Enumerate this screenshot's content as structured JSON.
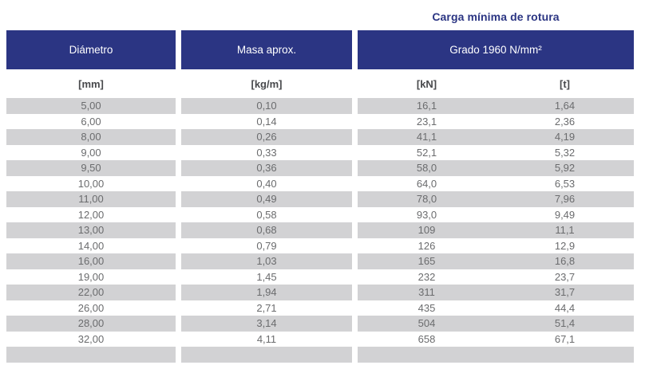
{
  "title": "Carga mínima de rotura",
  "colors": {
    "header_blue": "#2B3583",
    "title_blue": "#2B3583",
    "row_gray": "#D2D2D4",
    "data_text": "#6B6C6E",
    "unit_text": "#48494C"
  },
  "table": {
    "column_groups": [
      {
        "label": "Diámetro"
      },
      {
        "label": "Masa aprox."
      },
      {
        "label": "Grado 1960 N/mm²"
      }
    ],
    "units": {
      "diameter": "[mm]",
      "mass": "[kg/m]",
      "kn": "[kN]",
      "t": "[t]"
    },
    "rows": [
      [
        "5,00",
        "0,10",
        "16,1",
        "1,64"
      ],
      [
        "6,00",
        "0,14",
        "23,1",
        "2,36"
      ],
      [
        "8,00",
        "0,26",
        "41,1",
        "4,19"
      ],
      [
        "9,00",
        "0,33",
        "52,1",
        "5,32"
      ],
      [
        "9,50",
        "0,36",
        "58,0",
        "5,92"
      ],
      [
        "10,00",
        "0,40",
        "64,0",
        "6,53"
      ],
      [
        "11,00",
        "0,49",
        "78,0",
        "7,96"
      ],
      [
        "12,00",
        "0,58",
        "93,0",
        "9,49"
      ],
      [
        "13,00",
        "0,68",
        "109",
        "11,1"
      ],
      [
        "14,00",
        "0,79",
        "126",
        "12,9"
      ],
      [
        "16,00",
        "1,03",
        "165",
        "16,8"
      ],
      [
        "19,00",
        "1,45",
        "232",
        "23,7"
      ],
      [
        "22,00",
        "1,94",
        "311",
        "31,7"
      ],
      [
        "26,00",
        "2,71",
        "435",
        "44,4"
      ],
      [
        "28,00",
        "3,14",
        "504",
        "51,4"
      ],
      [
        "32,00",
        "4,11",
        "658",
        "67,1"
      ],
      [
        "",
        "",
        "",
        ""
      ]
    ]
  }
}
